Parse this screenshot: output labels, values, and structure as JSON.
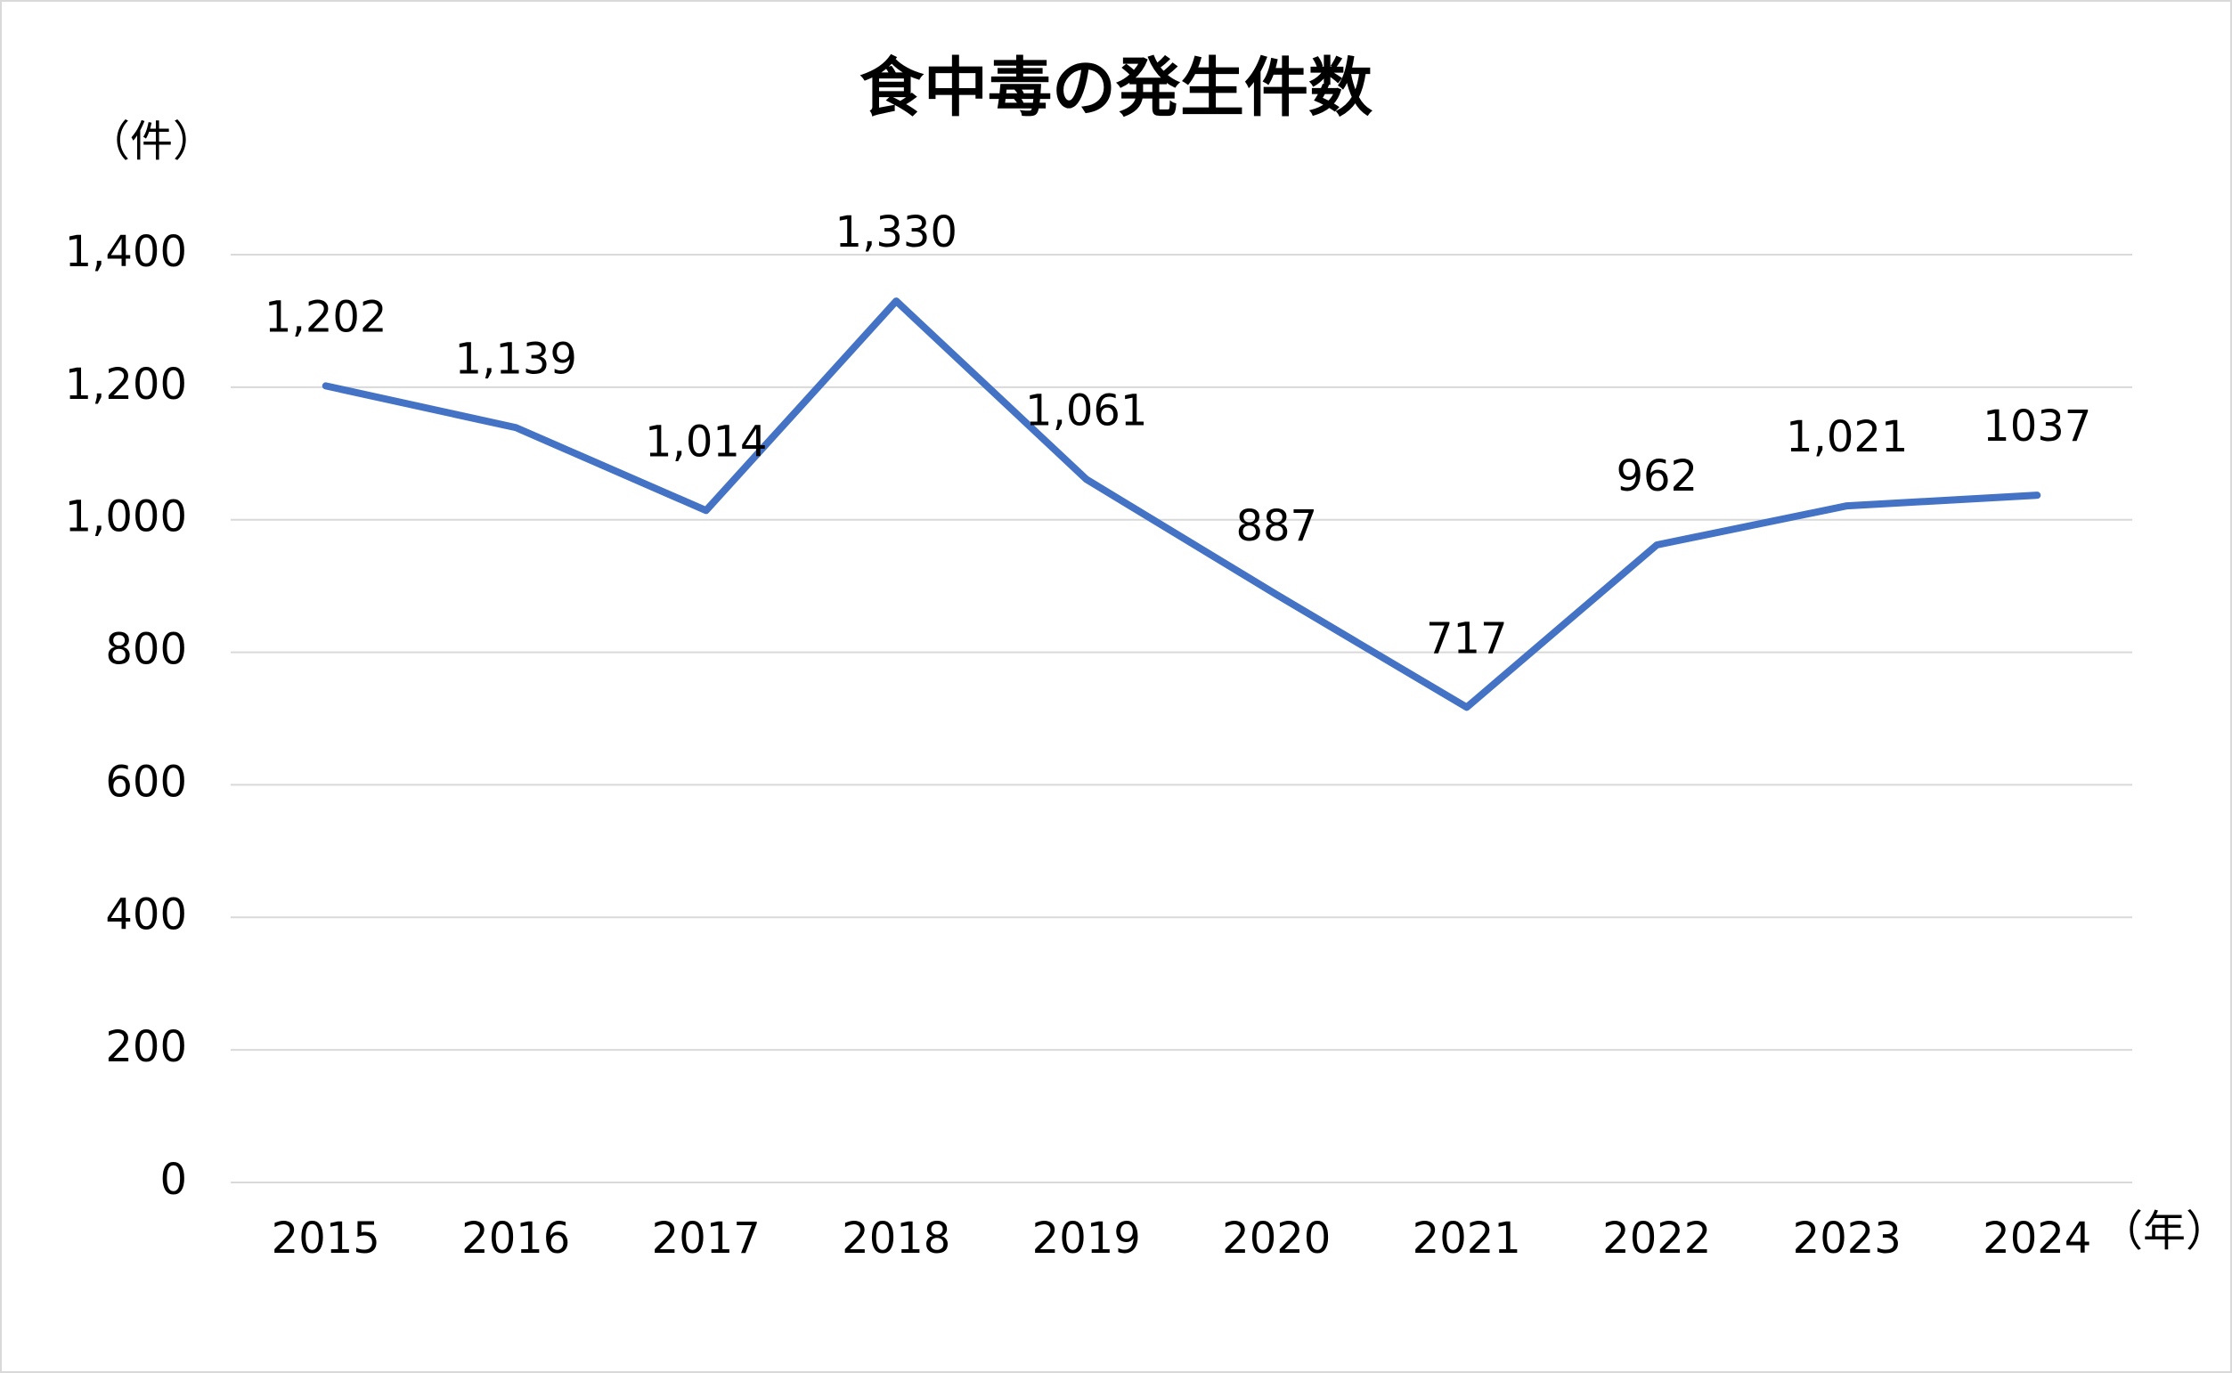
{
  "chart_data": {
    "type": "line",
    "title": "食中毒の発生件数",
    "y_axis_label": "（件）",
    "x_axis_label": "（年）",
    "categories": [
      "2015",
      "2016",
      "2017",
      "2018",
      "2019",
      "2020",
      "2021",
      "2022",
      "2023",
      "2024"
    ],
    "values": [
      1202,
      1139,
      1014,
      1330,
      1061,
      887,
      717,
      962,
      1021,
      1037
    ],
    "value_labels": [
      "1,202",
      "1,139",
      "1,014",
      "1,330",
      "1,061",
      "887",
      "717",
      "962",
      "1,021",
      "1037"
    ],
    "color": "#4472c4",
    "ylim": [
      0,
      1400
    ],
    "yticks": [
      0,
      200,
      400,
      600,
      800,
      {
        "value": 1000,
        "label": "1,000"
      },
      {
        "value": 1200,
        "label": "1,200"
      },
      {
        "value": 1400,
        "label": "1,400"
      }
    ],
    "grid": true
  }
}
